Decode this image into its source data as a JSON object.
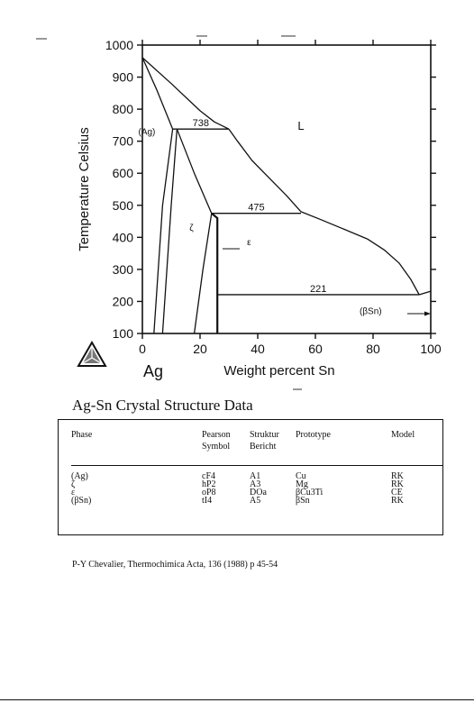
{
  "chart_data": {
    "type": "line",
    "title": "",
    "xlabel": "Weight percent Sn",
    "ylabel": "Temperature Celsius",
    "xlim": [
      0,
      100
    ],
    "ylim": [
      100,
      1000
    ],
    "x_ticks": [
      "0",
      "20",
      "40",
      "60",
      "80",
      "100"
    ],
    "y_ticks": [
      "100",
      "200",
      "300",
      "400",
      "500",
      "600",
      "700",
      "800",
      "900",
      "1000"
    ],
    "x_tick_values": [
      0,
      20,
      40,
      60,
      80,
      100
    ],
    "y_tick_values": [
      100,
      200,
      300,
      400,
      500,
      600,
      700,
      800,
      900,
      1000
    ],
    "element_label": "Ag",
    "grid": false,
    "series": [
      {
        "points": [
          [
            0,
            961
          ],
          [
            10,
            880
          ],
          [
            20,
            795
          ],
          [
            25,
            760
          ],
          [
            30,
            738
          ]
        ]
      },
      {
        "points": [
          [
            0,
            961
          ],
          [
            5,
            860
          ],
          [
            10.5,
            738
          ]
        ]
      },
      {
        "points": [
          [
            10.5,
            738
          ],
          [
            7,
            500
          ],
          [
            4,
            100
          ]
        ]
      },
      {
        "points": [
          [
            12,
            738
          ],
          [
            10,
            500
          ],
          [
            7,
            100
          ]
        ]
      },
      {
        "points": [
          [
            12,
            738
          ],
          [
            18,
            600
          ],
          [
            24,
            475
          ]
        ]
      },
      {
        "points": [
          [
            30,
            738
          ],
          [
            33,
            700
          ],
          [
            38,
            640
          ],
          [
            44,
            585
          ],
          [
            50,
            530
          ],
          [
            55,
            480
          ],
          [
            62,
            455
          ],
          [
            70,
            425
          ],
          [
            78,
            395
          ],
          [
            84,
            360
          ],
          [
            89,
            320
          ],
          [
            93,
            270
          ],
          [
            96,
            221
          ]
        ]
      },
      {
        "points": [
          [
            24,
            475
          ],
          [
            21,
            300
          ],
          [
            18,
            100
          ]
        ]
      },
      {
        "points": [
          [
            24,
            475
          ],
          [
            26,
            460
          ],
          [
            26,
            100
          ]
        ]
      },
      {
        "points": [
          [
            96,
            221
          ],
          [
            100,
            232
          ]
        ]
      }
    ],
    "invariants": [
      {
        "label": "738",
        "temperature": 738,
        "x_from": 10.5,
        "x_to": 30
      },
      {
        "label": "475",
        "temperature": 475,
        "x_from": 24,
        "x_to": 55
      },
      {
        "label": "221",
        "temperature": 221,
        "x_from": 26,
        "x_to": 96
      }
    ],
    "phase_labels": [
      {
        "text": "L",
        "x": 55,
        "y": 735
      },
      {
        "text": "(Ag)",
        "x": 4.5,
        "y": 720
      },
      {
        "text": "ζ",
        "x": 17,
        "y": 420
      },
      {
        "text": "ε",
        "x": 37,
        "y": 375
      },
      {
        "text": "(βSn)",
        "x": 83,
        "y": 160
      }
    ]
  },
  "section_title": "Ag-Sn Crystal Structure Data",
  "table": {
    "headers": [
      {
        "l1": "Phase",
        "l2": ""
      },
      {
        "l1": "Pearson",
        "l2": "Symbol"
      },
      {
        "l1": "Struktur",
        "l2": "Bericht"
      },
      {
        "l1": "Prototype",
        "l2": ""
      },
      {
        "l1": "Model",
        "l2": ""
      }
    ],
    "rows": [
      [
        "(Ag)",
        "cF4",
        "A1",
        "Cu",
        "RK"
      ],
      [
        "ζ",
        "hP2",
        "A3",
        "Mg",
        "RK"
      ],
      [
        "ε",
        "oP8",
        "DOa",
        "βCu3Ti",
        "CE"
      ],
      [
        "(βSn)",
        "tI4",
        "A5",
        "βSn",
        "RK"
      ]
    ]
  },
  "citation": "P-Y Chevalier, Thermochimica Acta, 136 (1988) p 45-54"
}
